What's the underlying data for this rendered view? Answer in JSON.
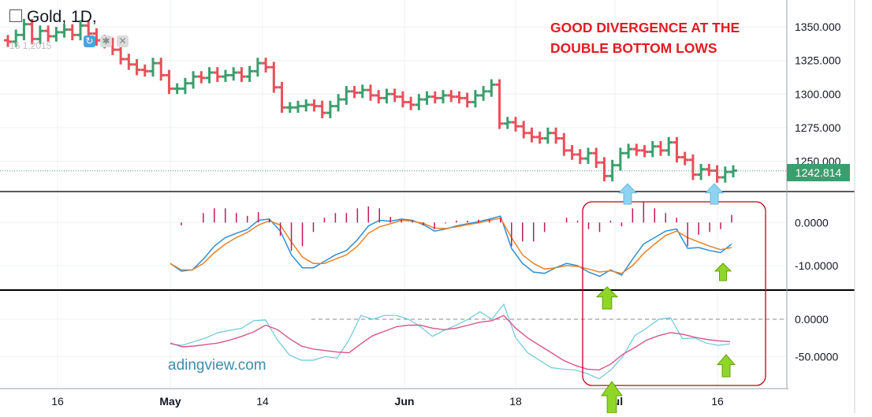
{
  "header": {
    "title": "Gold, 1D,",
    "ohlc_fragment": "16 1,2015"
  },
  "annotation": {
    "line1": "GOOD DIVERGENCE AT THE",
    "line2": "DOUBLE BOTTOM LOWS"
  },
  "watermark": "adingview.com",
  "last_price": "1242.814",
  "colors": {
    "up": "#3b9e6e",
    "down": "#e8505b",
    "macd": "#2f8fd4",
    "signal": "#e8832a",
    "histogram": "#c2185b",
    "rsi_fast": "#6cc7dc",
    "rsi_slow": "#d9558c",
    "annotation": "#e31b23",
    "arrow_blue": "#8fd3f2",
    "arrow_green": "#8fd629"
  },
  "chart_data": [
    {
      "type": "candlestick",
      "title": "Gold, 1D",
      "x_tick_labels": [
        "16",
        "May",
        "14",
        "Jun",
        "18",
        "Jul",
        "16"
      ],
      "y_tick_labels": [
        "1350.000",
        "1325.000",
        "1300.000",
        "1275.000",
        "1250.000"
      ],
      "ylim": [
        1228,
        1370
      ],
      "last_price": 1242.814,
      "closes": [
        1339,
        1344,
        1352,
        1341,
        1347,
        1343,
        1346,
        1348,
        1344,
        1351,
        1345,
        1340,
        1338,
        1333,
        1326,
        1322,
        1318,
        1317,
        1323,
        1314,
        1304,
        1304,
        1308,
        1313,
        1312,
        1316,
        1313,
        1314,
        1316,
        1313,
        1317,
        1323,
        1320,
        1305,
        1290,
        1290,
        1291,
        1292,
        1291,
        1286,
        1291,
        1296,
        1302,
        1301,
        1303,
        1299,
        1297,
        1300,
        1298,
        1294,
        1292,
        1296,
        1298,
        1297,
        1299,
        1298,
        1297,
        1294,
        1299,
        1302,
        1307,
        1278,
        1279,
        1276,
        1271,
        1268,
        1267,
        1271,
        1267,
        1258,
        1255,
        1252,
        1256,
        1249,
        1239,
        1247,
        1256,
        1259,
        1258,
        1257,
        1261,
        1258,
        1264,
        1253,
        1251,
        1240,
        1244,
        1243,
        1238,
        1242,
        1243
      ]
    },
    {
      "type": "line",
      "title": "MACD",
      "y_tick_labels": [
        "0.0000",
        "-10.0000"
      ],
      "ylim": [
        -15.5,
        7
      ],
      "series": [
        {
          "values": [
            -9.5,
            -11.3,
            -11.0,
            -8.5,
            -5.5,
            -3.5,
            -2.5,
            -1.6,
            0.5,
            0.8,
            -2.0,
            -7.5,
            -10.5,
            -10.5,
            -9.0,
            -7.5,
            -6.5,
            -4.0,
            -0.8,
            0.5,
            0.3,
            0.8,
            0.5,
            -0.5,
            -2.0,
            -1.5,
            -0.8,
            -0.3,
            0.2,
            0.8,
            1.5,
            -6.0,
            -9.5,
            -11.5,
            -11.8,
            -10.5,
            -9.5,
            -10.0,
            -11.5,
            -12.5,
            -11.0,
            -12.2,
            -8.5,
            -5.0,
            -3.5,
            -2.0,
            -1.5,
            -6.0,
            -5.8,
            -6.5,
            -7.0,
            -5.0
          ]
        },
        {
          "values": [
            -9.5,
            -11.0,
            -11.0,
            -9.5,
            -7.0,
            -5.0,
            -3.5,
            -2.3,
            -0.6,
            0.4,
            -0.6,
            -4.5,
            -8.0,
            -9.5,
            -9.5,
            -8.5,
            -7.5,
            -5.5,
            -2.5,
            -1.0,
            -0.3,
            0.5,
            0.3,
            -0.2,
            -1.3,
            -1.4,
            -1.0,
            -0.5,
            -0.1,
            0.5,
            1.0,
            -3.5,
            -7.5,
            -9.5,
            -10.8,
            -10.5,
            -10.0,
            -10.2,
            -10.8,
            -11.5,
            -11.2,
            -11.8,
            -10.0,
            -7.2,
            -5.0,
            -3.0,
            -2.0,
            -3.5,
            -4.5,
            -5.5,
            -6.3,
            -5.8
          ]
        }
      ]
    },
    {
      "type": "line",
      "title": "Oscillator",
      "y_tick_labels": [
        "0.0000",
        "-50.0000"
      ],
      "ylim": [
        -92,
        38
      ],
      "series": [
        {
          "values": [
            -33,
            -35,
            -30,
            -25,
            -18,
            -15,
            -12,
            -2,
            -1,
            -28,
            -48,
            -55,
            -55,
            -50,
            -52,
            -28,
            5,
            0,
            5,
            5,
            0,
            -10,
            -23,
            -15,
            -8,
            0,
            10,
            0,
            20,
            -25,
            -45,
            -55,
            -65,
            -67,
            -68,
            -73,
            -80,
            -68,
            -50,
            -22,
            -12,
            0,
            2,
            -26,
            -25,
            -32,
            -35,
            -33
          ]
        },
        {
          "values": [
            -32,
            -37,
            -36,
            -34,
            -32,
            -28,
            -23,
            -17,
            -8,
            -14,
            -26,
            -36,
            -40,
            -42,
            -44,
            -45,
            -33,
            -22,
            -16,
            -10,
            -8,
            -8,
            -12,
            -14,
            -12,
            -8,
            -4,
            -2,
            5,
            -12,
            -25,
            -35,
            -45,
            -55,
            -62,
            -67,
            -68,
            -60,
            -47,
            -38,
            -28,
            -22,
            -18,
            -20,
            -24,
            -27,
            -29,
            -30
          ]
        }
      ]
    }
  ]
}
